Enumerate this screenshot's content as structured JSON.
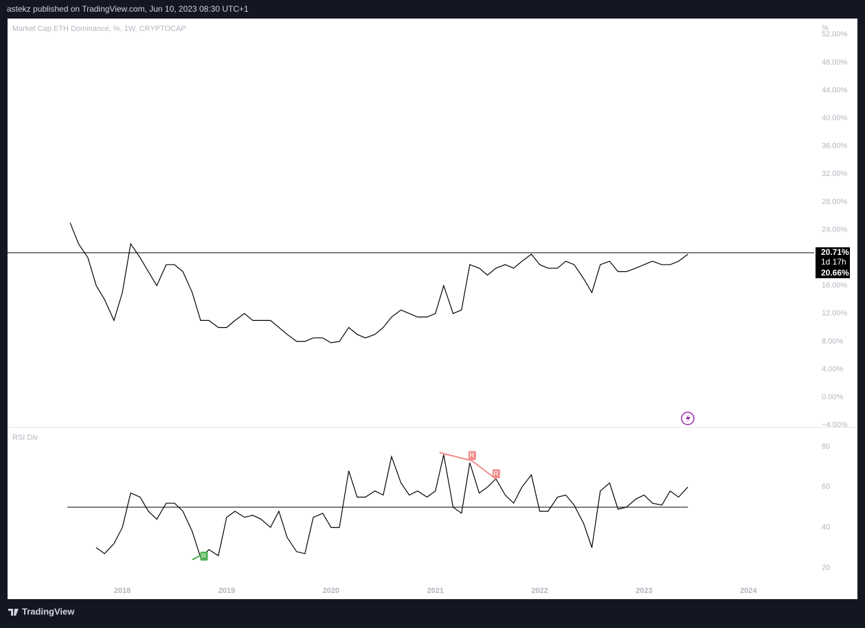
{
  "header": "astekz published on TradingView.com, Jun 10, 2023 08:30 UTC+1",
  "footer": "TradingView",
  "chart_data": [
    {
      "type": "line",
      "title": "Market Cap ETH Dominance, %, 1W, CRYPTOCAP",
      "unit": "%",
      "color": "#000000",
      "x": [
        2017.5,
        2017.58,
        2017.67,
        2017.75,
        2017.83,
        2017.92,
        2018.0,
        2018.08,
        2018.17,
        2018.25,
        2018.33,
        2018.42,
        2018.5,
        2018.58,
        2018.67,
        2018.75,
        2018.83,
        2018.92,
        2019.0,
        2019.08,
        2019.17,
        2019.25,
        2019.33,
        2019.42,
        2019.5,
        2019.58,
        2019.67,
        2019.75,
        2019.83,
        2019.92,
        2020.0,
        2020.08,
        2020.17,
        2020.25,
        2020.33,
        2020.42,
        2020.5,
        2020.58,
        2020.67,
        2020.75,
        2020.83,
        2020.92,
        2021.0,
        2021.08,
        2021.17,
        2021.25,
        2021.33,
        2021.42,
        2021.5,
        2021.58,
        2021.67,
        2021.75,
        2021.83,
        2021.92,
        2022.0,
        2022.08,
        2022.17,
        2022.25,
        2022.33,
        2022.42,
        2022.5,
        2022.58,
        2022.67,
        2022.75,
        2022.83,
        2022.92,
        2023.0,
        2023.08,
        2023.17,
        2023.25,
        2023.33,
        2023.42
      ],
      "values": [
        25,
        22,
        20,
        16,
        14,
        11,
        15,
        22,
        20,
        18,
        16,
        19,
        19,
        18,
        15,
        11,
        11,
        10,
        10,
        11,
        12,
        11,
        11,
        11,
        10,
        9,
        8,
        8,
        8.5,
        8.5,
        7.8,
        8,
        10,
        9,
        8.5,
        9,
        10,
        11.5,
        12.5,
        12,
        11.5,
        11.5,
        12,
        16,
        12,
        12.5,
        19,
        18.5,
        17.5,
        18.5,
        19,
        18.5,
        19.5,
        20.5,
        19,
        18.5,
        18.5,
        19.5,
        19,
        17,
        15,
        19,
        19.5,
        18,
        18,
        18.5,
        19,
        19.5,
        19,
        19,
        19.5,
        20.5
      ],
      "price_line": {
        "value": 20.71,
        "label": "20.71%"
      },
      "countdown": "1d 17h",
      "close_label": {
        "value": 20.66,
        "label": "20.66%"
      },
      "xlim": [
        2016.9,
        2024.63
      ],
      "ylim": [
        -4.33,
        54.3
      ],
      "yticks": [
        {
          "value": -4,
          "label": "−4.00%"
        },
        {
          "value": 0,
          "label": "0.00%"
        },
        {
          "value": 4,
          "label": "4.00%"
        },
        {
          "value": 8,
          "label": "8.00%"
        },
        {
          "value": 12,
          "label": "12.00%"
        },
        {
          "value": 16,
          "label": "16.00%"
        },
        {
          "value": 20,
          "label": "20.00%"
        },
        {
          "value": 24,
          "label": "24.00%"
        },
        {
          "value": 28,
          "label": "28.00%"
        },
        {
          "value": 32,
          "label": "32.00%"
        },
        {
          "value": 36,
          "label": "36.00%"
        },
        {
          "value": 40,
          "label": "40.00%"
        },
        {
          "value": 44,
          "label": "44.00%"
        },
        {
          "value": 48,
          "label": "48.00%"
        },
        {
          "value": 52,
          "label": "52.00%"
        }
      ]
    },
    {
      "type": "line",
      "title": "RSI Div",
      "color": "#000000",
      "level": 50,
      "x": [
        2017.75,
        2017.83,
        2017.92,
        2018.0,
        2018.08,
        2018.17,
        2018.25,
        2018.33,
        2018.42,
        2018.5,
        2018.58,
        2018.67,
        2018.75,
        2018.83,
        2018.92,
        2019.0,
        2019.08,
        2019.17,
        2019.25,
        2019.33,
        2019.42,
        2019.5,
        2019.58,
        2019.67,
        2019.75,
        2019.83,
        2019.92,
        2020.0,
        2020.08,
        2020.17,
        2020.25,
        2020.33,
        2020.42,
        2020.5,
        2020.58,
        2020.67,
        2020.75,
        2020.83,
        2020.92,
        2021.0,
        2021.08,
        2021.17,
        2021.25,
        2021.33,
        2021.42,
        2021.5,
        2021.58,
        2021.67,
        2021.75,
        2021.83,
        2021.92,
        2022.0,
        2022.08,
        2022.17,
        2022.25,
        2022.33,
        2022.42,
        2022.5,
        2022.58,
        2022.67,
        2022.75,
        2022.83,
        2022.92,
        2023.0,
        2023.08,
        2023.17,
        2023.25,
        2023.33,
        2023.42
      ],
      "values": [
        30,
        27,
        32,
        40,
        57,
        55,
        48,
        44,
        52,
        52,
        48,
        38,
        25,
        29,
        26,
        45,
        48,
        45,
        46,
        44,
        40,
        48,
        35,
        28,
        27,
        45,
        47,
        40,
        40,
        68,
        55,
        55,
        58,
        56,
        75,
        62,
        56,
        58,
        55,
        58,
        76,
        50,
        47,
        72,
        57,
        60,
        64,
        56,
        52,
        60,
        66,
        48,
        48,
        55,
        56,
        51,
        42,
        30,
        58,
        62,
        49,
        50,
        54,
        56,
        52,
        51,
        58,
        55,
        60
      ],
      "divergences": [
        {
          "color": "#4caf50",
          "label": "R",
          "x": [
            2018.67,
            2018.78
          ],
          "values": [
            24,
            27
          ]
        },
        {
          "color": "#f28b8b",
          "label": "R",
          "x": [
            2021.04,
            2021.35
          ],
          "values": [
            77,
            73
          ]
        },
        {
          "color": "#f28b8b",
          "label": "R",
          "x": [
            2021.35,
            2021.58
          ],
          "values": [
            73,
            64
          ]
        }
      ],
      "xlim": [
        2016.9,
        2024.63
      ],
      "ylim": [
        13,
        89.5
      ],
      "xticks": [
        2018,
        2019,
        2020,
        2021,
        2022,
        2023,
        2024
      ],
      "yticks": [
        20,
        40,
        60,
        80
      ]
    }
  ]
}
